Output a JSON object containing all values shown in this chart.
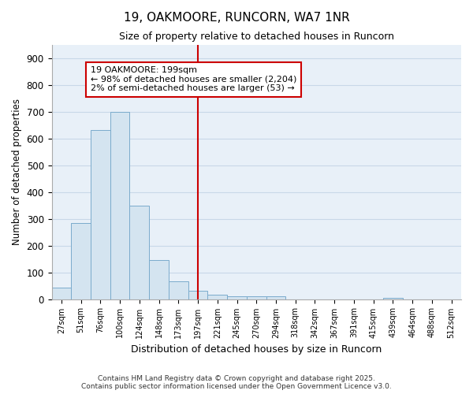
{
  "title": "19, OAKMOORE, RUNCORN, WA7 1NR",
  "subtitle": "Size of property relative to detached houses in Runcorn",
  "xlabel": "Distribution of detached houses by size in Runcorn",
  "ylabel": "Number of detached properties",
  "bar_labels": [
    "27sqm",
    "51sqm",
    "76sqm",
    "100sqm",
    "124sqm",
    "148sqm",
    "173sqm",
    "197sqm",
    "221sqm",
    "245sqm",
    "270sqm",
    "294sqm",
    "318sqm",
    "342sqm",
    "367sqm",
    "391sqm",
    "415sqm",
    "439sqm",
    "464sqm",
    "488sqm",
    "512sqm"
  ],
  "bar_values": [
    42,
    285,
    632,
    700,
    350,
    145,
    65,
    30,
    17,
    10,
    10,
    10,
    0,
    0,
    0,
    0,
    0,
    5,
    0,
    0,
    0
  ],
  "bar_color": "#d4e4f0",
  "bar_edge_color": "#7aabcc",
  "vline_color": "#cc0000",
  "vline_pos": 7.0,
  "annotation_text": "19 OAKMOORE: 199sqm\n← 98% of detached houses are smaller (2,204)\n2% of semi-detached houses are larger (53) →",
  "annotation_box_color": "#cc0000",
  "ylim": [
    0,
    950
  ],
  "yticks": [
    0,
    100,
    200,
    300,
    400,
    500,
    600,
    700,
    800,
    900
  ],
  "grid_color": "#c8d8e8",
  "background_color": "#e8f0f8",
  "footer_line1": "Contains HM Land Registry data © Crown copyright and database right 2025.",
  "footer_line2": "Contains public sector information licensed under the Open Government Licence v3.0."
}
